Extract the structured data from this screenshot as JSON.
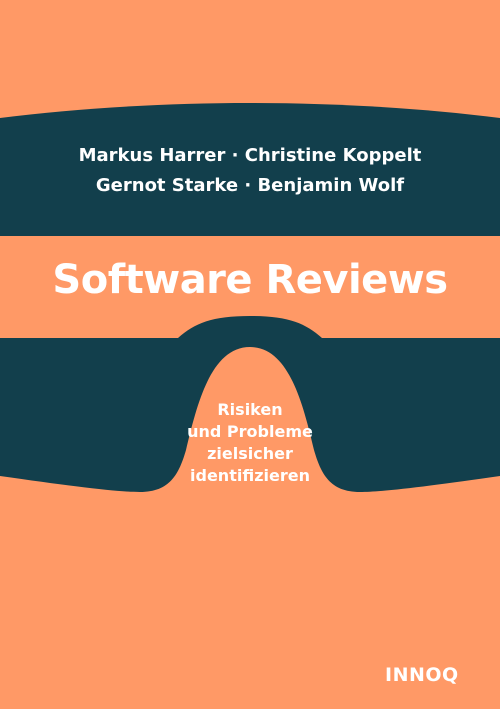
{
  "cover": {
    "authors_line_1": "Markus Harrer · Christine Koppelt",
    "authors_line_2": "Gernot Starke · Benjamin Wolf",
    "title": "Software Reviews",
    "subtitle_lines": [
      "Risiken",
      "und Probleme",
      "zielsicher",
      "identifizieren"
    ],
    "publisher": "INNOQ"
  },
  "colors": {
    "background": "#ff9966",
    "band": "#123f4c",
    "text": "#ffffff"
  }
}
